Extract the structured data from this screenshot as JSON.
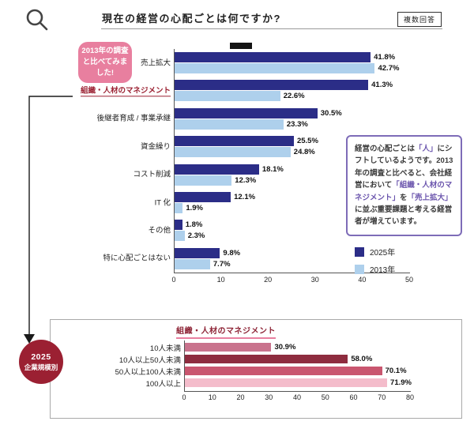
{
  "header": {
    "title": "現在の経営の心配ごとは何ですか?",
    "badge": "複数回答"
  },
  "bubble": {
    "text": "2013年の調査と比べてみました!"
  },
  "callout": {
    "segments": [
      {
        "text": "経営の心配ごとは",
        "highlight": false
      },
      {
        "text": "「人」",
        "highlight": true
      },
      {
        "text": "にシフトしているようです。2013年の調査と比べると、会社経営において",
        "highlight": false
      },
      {
        "text": "「組織・人材のマネジメント」",
        "highlight": true
      },
      {
        "text": "を",
        "highlight": false
      },
      {
        "text": "「売上拡大」",
        "highlight": true
      },
      {
        "text": "に並ぶ重要課題と考える経営者が増えています。",
        "highlight": false
      }
    ]
  },
  "size_circle": {
    "line1": "2025",
    "line2": "企業規模別"
  },
  "colors": {
    "series_2025": "#2b2d87",
    "series_2013": "#aed0ec",
    "bubble_pink": "#e87f9f",
    "callout_purple": "#7e6cb8",
    "dark_red": "#9b2032"
  },
  "chart_data": [
    {
      "type": "bar",
      "orientation": "horizontal",
      "title": "現在の経営の心配ごとは何ですか?",
      "categories": [
        "売上拡大",
        "組織・人材のマネジメント",
        "後継者育成 / 事業承継",
        "資金繰り",
        "コスト削減",
        "IT 化",
        "その他",
        "特に心配ごとはない"
      ],
      "emphasized_category_index": 1,
      "series": [
        {
          "name": "2025年",
          "color": "#2b2d87",
          "values": [
            41.8,
            41.3,
            30.5,
            25.5,
            18.1,
            12.1,
            1.8,
            9.8
          ]
        },
        {
          "name": "2013年",
          "color": "#aed0ec",
          "values": [
            42.7,
            22.6,
            23.3,
            24.8,
            12.3,
            1.9,
            2.3,
            7.7
          ]
        }
      ],
      "value_suffix": "%",
      "xlabel": "",
      "ylabel": "",
      "xlim": [
        0,
        50
      ],
      "xticks": [
        0,
        10,
        20,
        30,
        40,
        50
      ],
      "grid": false,
      "legend_position": "right-bottom"
    },
    {
      "type": "bar",
      "orientation": "horizontal",
      "title": "組織・人材のマネジメント",
      "subtitle": "2025 企業規模別",
      "categories": [
        "10人未満",
        "10人以上50人未満",
        "50人以上100人未満",
        "100人以上"
      ],
      "values": [
        30.9,
        58.0,
        70.1,
        71.9
      ],
      "bar_colors": [
        "#c9738d",
        "#8e2c3f",
        "#c9566f",
        "#f4bccb"
      ],
      "value_suffix": "%",
      "xlabel": "",
      "ylabel": "",
      "xlim": [
        0,
        80
      ],
      "xticks": [
        0,
        10,
        20,
        30,
        40,
        50,
        60,
        70,
        80
      ],
      "grid": false
    }
  ]
}
